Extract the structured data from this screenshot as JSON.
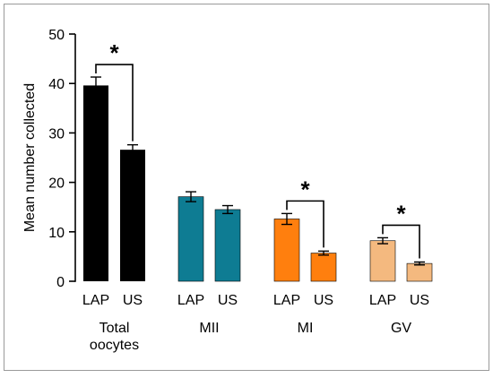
{
  "chart_data": {
    "type": "bar",
    "title": "",
    "xlabel": "",
    "ylabel": "Mean number collected",
    "ylim": [
      0,
      50
    ],
    "yticks": [
      0,
      10,
      20,
      30,
      40,
      50
    ],
    "grid": false,
    "groups": [
      {
        "label": "Total oocytes",
        "color": "#000000",
        "bars": [
          {
            "label": "LAP",
            "value": 39.6,
            "error": 1.7
          },
          {
            "label": "US",
            "value": 26.6,
            "error": 1.0
          }
        ],
        "significance": "*"
      },
      {
        "label": "MII",
        "color": "#0e7c93",
        "bars": [
          {
            "label": "LAP",
            "value": 17.1,
            "error": 1.0
          },
          {
            "label": "US",
            "value": 14.5,
            "error": 0.8
          }
        ],
        "significance": ""
      },
      {
        "label": "MI",
        "color": "#ff7f0e",
        "bars": [
          {
            "label": "LAP",
            "value": 12.6,
            "error": 1.1
          },
          {
            "label": "US",
            "value": 5.7,
            "error": 0.4
          }
        ],
        "significance": "*"
      },
      {
        "label": "GV",
        "color": "#f4b97f",
        "bars": [
          {
            "label": "LAP",
            "value": 8.2,
            "error": 0.6
          },
          {
            "label": "US",
            "value": 3.6,
            "error": 0.3
          }
        ],
        "significance": "*"
      }
    ]
  }
}
